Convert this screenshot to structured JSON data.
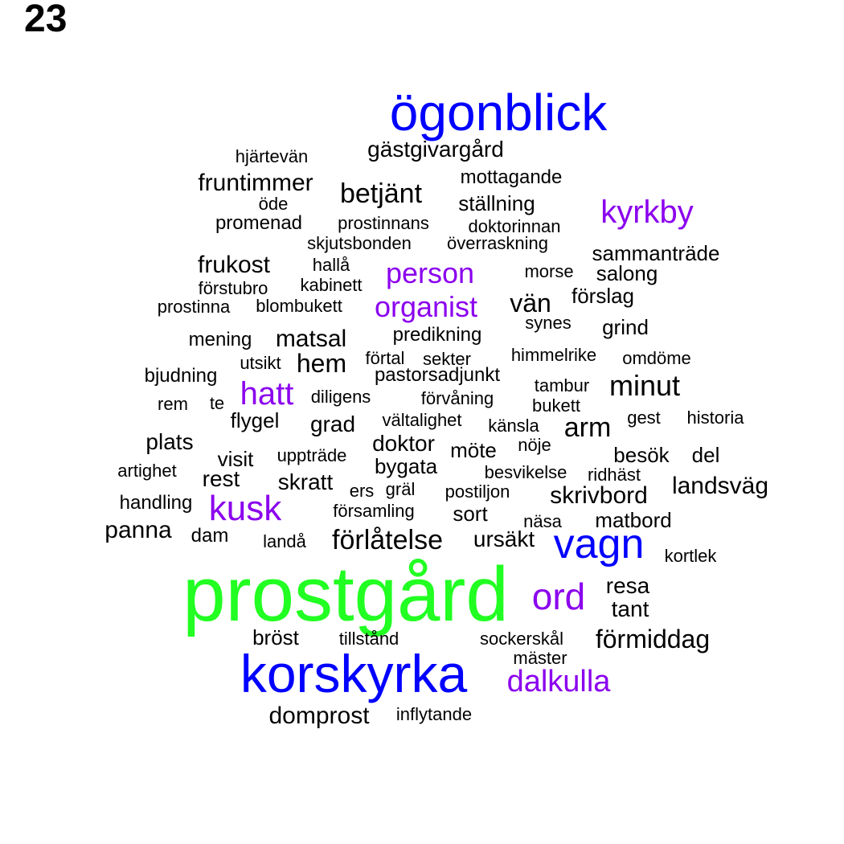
{
  "page_number": "23",
  "palette": {
    "green": "#22ff22",
    "blue": "#0000ff",
    "purple": "#8b00ee",
    "black": "#000000"
  },
  "words": [
    {
      "text": "prostgård",
      "color": "green"
    },
    {
      "text": "korskyrka",
      "color": "blue"
    },
    {
      "text": "ögonblick",
      "color": "blue"
    },
    {
      "text": "vagn",
      "color": "blue"
    },
    {
      "text": "ord",
      "color": "purple"
    },
    {
      "text": "dalkulla",
      "color": "purple"
    },
    {
      "text": "kyrkby",
      "color": "purple"
    },
    {
      "text": "person",
      "color": "purple"
    },
    {
      "text": "organist",
      "color": "purple"
    },
    {
      "text": "hatt",
      "color": "purple"
    },
    {
      "text": "kusk",
      "color": "purple"
    },
    {
      "text": "gästgivargård",
      "color": "black"
    },
    {
      "text": "hjärtevän",
      "color": "black"
    },
    {
      "text": "fruntimmer",
      "color": "black"
    },
    {
      "text": "betjänt",
      "color": "black"
    },
    {
      "text": "mottagande",
      "color": "black"
    },
    {
      "text": "öde",
      "color": "black"
    },
    {
      "text": "ställning",
      "color": "black"
    },
    {
      "text": "promenad",
      "color": "black"
    },
    {
      "text": "prostinnans",
      "color": "black"
    },
    {
      "text": "doktorinnan",
      "color": "black"
    },
    {
      "text": "skjutsbonden",
      "color": "black"
    },
    {
      "text": "överraskning",
      "color": "black"
    },
    {
      "text": "sammanträde",
      "color": "black"
    },
    {
      "text": "frukost",
      "color": "black"
    },
    {
      "text": "hallå",
      "color": "black"
    },
    {
      "text": "morse",
      "color": "black"
    },
    {
      "text": "salong",
      "color": "black"
    },
    {
      "text": "förstubro",
      "color": "black"
    },
    {
      "text": "kabinett",
      "color": "black"
    },
    {
      "text": "vän",
      "color": "black"
    },
    {
      "text": "förslag",
      "color": "black"
    },
    {
      "text": "prostinna",
      "color": "black"
    },
    {
      "text": "blombukett",
      "color": "black"
    },
    {
      "text": "synes",
      "color": "black"
    },
    {
      "text": "grind",
      "color": "black"
    },
    {
      "text": "mening",
      "color": "black"
    },
    {
      "text": "matsal",
      "color": "black"
    },
    {
      "text": "predikning",
      "color": "black"
    },
    {
      "text": "utsikt",
      "color": "black"
    },
    {
      "text": "hem",
      "color": "black"
    },
    {
      "text": "förtal",
      "color": "black"
    },
    {
      "text": "sekter",
      "color": "black"
    },
    {
      "text": "himmelrike",
      "color": "black"
    },
    {
      "text": "omdöme",
      "color": "black"
    },
    {
      "text": "bjudning",
      "color": "black"
    },
    {
      "text": "pastorsadjunkt",
      "color": "black"
    },
    {
      "text": "tambur",
      "color": "black"
    },
    {
      "text": "minut",
      "color": "black"
    },
    {
      "text": "rem",
      "color": "black"
    },
    {
      "text": "te",
      "color": "black"
    },
    {
      "text": "diligens",
      "color": "black"
    },
    {
      "text": "förvåning",
      "color": "black"
    },
    {
      "text": "bukett",
      "color": "black"
    },
    {
      "text": "flygel",
      "color": "black"
    },
    {
      "text": "grad",
      "color": "black"
    },
    {
      "text": "vältalighet",
      "color": "black"
    },
    {
      "text": "känsla",
      "color": "black"
    },
    {
      "text": "arm",
      "color": "black"
    },
    {
      "text": "gest",
      "color": "black"
    },
    {
      "text": "historia",
      "color": "black"
    },
    {
      "text": "plats",
      "color": "black"
    },
    {
      "text": "doktor",
      "color": "black"
    },
    {
      "text": "nöje",
      "color": "black"
    },
    {
      "text": "visit",
      "color": "black"
    },
    {
      "text": "uppträde",
      "color": "black"
    },
    {
      "text": "möte",
      "color": "black"
    },
    {
      "text": "besök",
      "color": "black"
    },
    {
      "text": "del",
      "color": "black"
    },
    {
      "text": "artighet",
      "color": "black"
    },
    {
      "text": "bygata",
      "color": "black"
    },
    {
      "text": "besvikelse",
      "color": "black"
    },
    {
      "text": "ridhäst",
      "color": "black"
    },
    {
      "text": "rest",
      "color": "black"
    },
    {
      "text": "skratt",
      "color": "black"
    },
    {
      "text": "ers",
      "color": "black"
    },
    {
      "text": "gräl",
      "color": "black"
    },
    {
      "text": "postiljon",
      "color": "black"
    },
    {
      "text": "skrivbord",
      "color": "black"
    },
    {
      "text": "landsväg",
      "color": "black"
    },
    {
      "text": "handling",
      "color": "black"
    },
    {
      "text": "församling",
      "color": "black"
    },
    {
      "text": "sort",
      "color": "black"
    },
    {
      "text": "näsa",
      "color": "black"
    },
    {
      "text": "matbord",
      "color": "black"
    },
    {
      "text": "panna",
      "color": "black"
    },
    {
      "text": "dam",
      "color": "black"
    },
    {
      "text": "landå",
      "color": "black"
    },
    {
      "text": "förlåtelse",
      "color": "black"
    },
    {
      "text": "ursäkt",
      "color": "black"
    },
    {
      "text": "kortlek",
      "color": "black"
    },
    {
      "text": "resa",
      "color": "black"
    },
    {
      "text": "tant",
      "color": "black"
    },
    {
      "text": "bröst",
      "color": "black"
    },
    {
      "text": "tillstånd",
      "color": "black"
    },
    {
      "text": "sockerskål",
      "color": "black"
    },
    {
      "text": "förmiddag",
      "color": "black"
    },
    {
      "text": "mäster",
      "color": "black"
    },
    {
      "text": "domprost",
      "color": "black"
    },
    {
      "text": "inflytande",
      "color": "black"
    }
  ]
}
